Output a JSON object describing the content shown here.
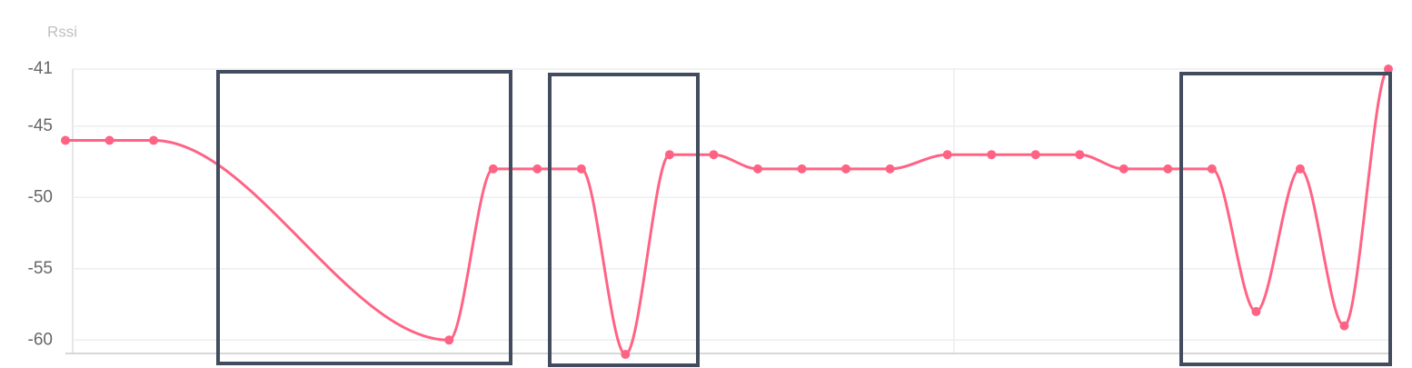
{
  "chart_data": {
    "type": "line",
    "y_label": "Rssi",
    "x": [
      0,
      1,
      2,
      8.7,
      9.7,
      10.7,
      11.7,
      12.7,
      13.7,
      14.7,
      15.7,
      16.7,
      17.7,
      18.7,
      20.0,
      21.0,
      22.0,
      23.0,
      24.0,
      25.0,
      26.0,
      27.0,
      28.0,
      29.0,
      30.0
    ],
    "series": [
      {
        "name": "Rssi",
        "color": "#ff6384",
        "values": [
          -46,
          -46,
          -46,
          -60,
          -48,
          -48,
          -48,
          -61,
          -47,
          -47,
          -48,
          -48,
          -48,
          -48,
          -47,
          -47,
          -47,
          -47,
          -48,
          -48,
          -48,
          -58,
          -48,
          -59,
          -41
        ]
      }
    ],
    "xlim": [
      0,
      30
    ],
    "ylim": [
      -61,
      -41
    ],
    "yticks": [
      -41,
      -45,
      -50,
      -55,
      -60
    ],
    "grid": true
  }
}
